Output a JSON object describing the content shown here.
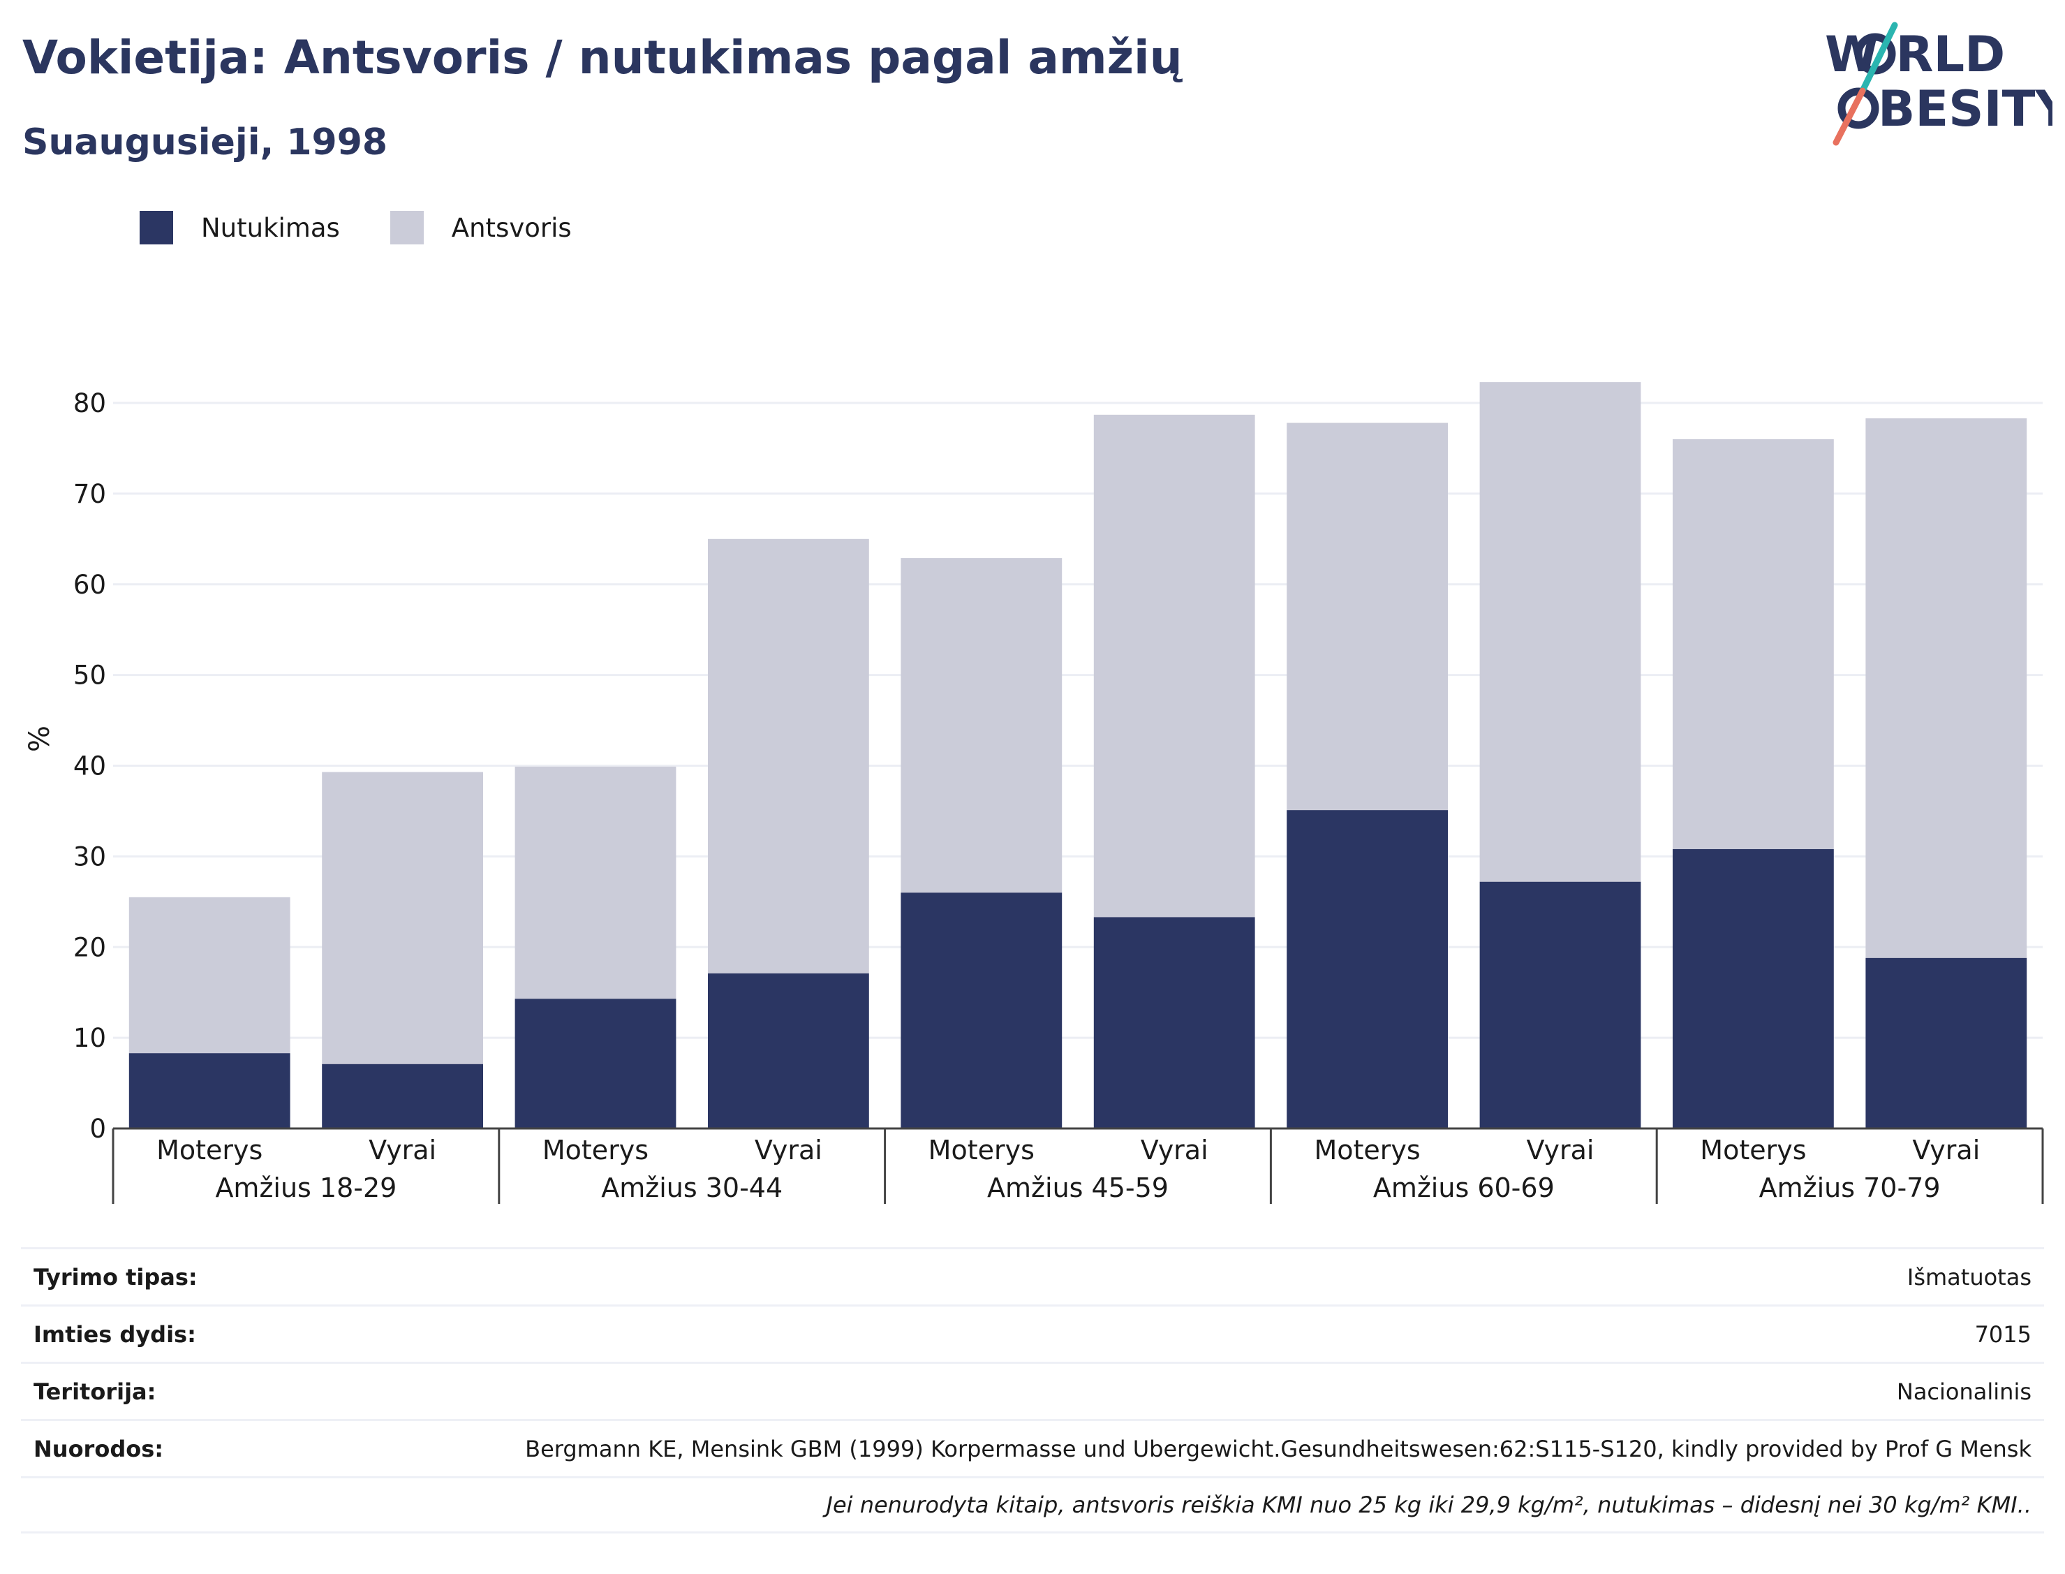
{
  "header": {
    "title": "Vokietija: Antsvoris / nutukimas pagal amžių",
    "subtitle": "Suaugusieji, 1998"
  },
  "logo": {
    "line1": "W RLD",
    "line2": "BESITY",
    "colors": {
      "text": "#2b365f",
      "accent_teal": "#2bb5b0",
      "accent_coral": "#e8715e"
    }
  },
  "colors": {
    "obesity": "#2b3663",
    "overweight": "#cbccd9",
    "grid": "#eceef4",
    "axis": "#444444"
  },
  "chart_data": {
    "type": "bar",
    "stacked": true,
    "ylabel": "%",
    "ylim": [
      0,
      80
    ],
    "yticks": [
      0,
      10,
      20,
      30,
      40,
      50,
      60,
      70,
      80
    ],
    "grid": true,
    "legend_position": "top-left",
    "groups": [
      "Amžius 18-29",
      "Amžius 30-44",
      "Amžius 45-59",
      "Amžius 60-69",
      "Amžius 70-79"
    ],
    "categories": [
      "Moterys",
      "Vyrai",
      "Moterys",
      "Vyrai",
      "Moterys",
      "Vyrai",
      "Moterys",
      "Vyrai",
      "Moterys",
      "Vyrai"
    ],
    "series": [
      {
        "name": "Nutukimas",
        "values": [
          8.3,
          7.1,
          14.3,
          17.1,
          26.0,
          23.3,
          35.1,
          27.2,
          30.8,
          18.8
        ]
      },
      {
        "name": "Antsvoris",
        "values": [
          17.2,
          32.2,
          25.6,
          47.9,
          36.9,
          55.4,
          42.7,
          55.1,
          45.2,
          59.5
        ]
      }
    ]
  },
  "info": {
    "rows": [
      {
        "label": "Tyrimo tipas:",
        "value": "Išmatuotas"
      },
      {
        "label": "Imties dydis:",
        "value": "7015"
      },
      {
        "label": "Teritorija:",
        "value": "Nacionalinis"
      },
      {
        "label": "Nuorodos:",
        "value": "Bergmann KE, Mensink GBM (1999) Korpermasse und Ubergewicht.Gesundheitswesen:62:S115-S120, kindly provided by Prof G Mensk"
      }
    ],
    "note": "Jei nenurodyta kitaip, antsvoris reiškia KMI nuo 25 kg iki 29,9 kg/m², nutukimas – didesnį nei 30 kg/m² KMI.."
  }
}
